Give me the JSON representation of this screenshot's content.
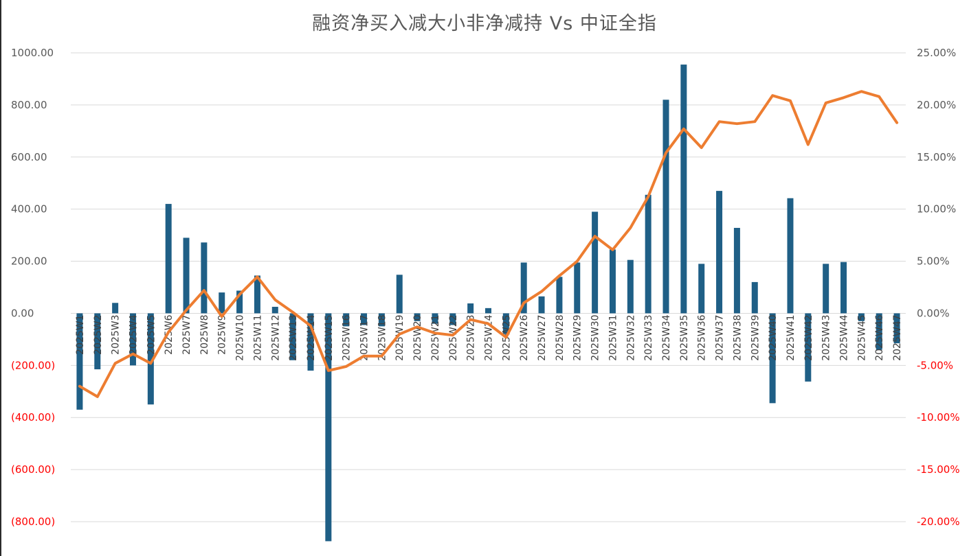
{
  "chart_data": {
    "type": "bar+line",
    "title": "融资净买入减大小非净减持 Vs 中证全指",
    "categories": [
      "2025W1",
      "2025W2",
      "2025W3",
      "2025W4",
      "2025W5",
      "2025W6",
      "2025W7",
      "2025W8",
      "2025W9",
      "2025W10",
      "2025W11",
      "2025W12",
      "2025W13",
      "2025W14",
      "2025W15",
      "2025W16",
      "2025W17",
      "2025W18",
      "2025W19",
      "2025W20",
      "2025W21",
      "2025W22",
      "2025W23",
      "2025W24",
      "2025W25",
      "2025W26",
      "2025W27",
      "2025W28",
      "2025W29",
      "2025W30",
      "2025W31",
      "2025W32",
      "2025W33",
      "2025W34",
      "2025W35",
      "2025W36",
      "2025W37",
      "2025W38",
      "2025W39",
      "2025W40",
      "2025W41",
      "2025W42",
      "2025W43",
      "2025W44",
      "2025W45",
      "2025W46",
      "2025W47"
    ],
    "series": [
      {
        "type": "bar",
        "axis": "left",
        "color": "#1f5f86",
        "values": [
          -370,
          -215,
          40,
          -200,
          -350,
          420,
          290,
          272,
          80,
          87,
          145,
          25,
          -180,
          -220,
          -875,
          -50,
          -45,
          -50,
          148,
          -30,
          -40,
          -45,
          38,
          20,
          -80,
          195,
          65,
          140,
          195,
          390,
          245,
          205,
          455,
          820,
          955,
          190,
          470,
          328,
          120,
          -345,
          442,
          -262,
          190,
          197,
          -30,
          -140,
          -115
        ]
      },
      {
        "type": "line",
        "axis": "right",
        "color": "#ed7d31",
        "values": [
          -7.0,
          -8.0,
          -4.8,
          -3.9,
          -4.8,
          -1.8,
          0.3,
          2.2,
          -0.3,
          1.8,
          3.5,
          1.3,
          0.1,
          -1.2,
          -5.5,
          -5.1,
          -4.1,
          -4.1,
          -2.0,
          -1.3,
          -1.9,
          -2.1,
          -0.6,
          -1.0,
          -2.3,
          1.0,
          2.1,
          3.6,
          5.0,
          7.4,
          6.1,
          8.2,
          11.2,
          15.4,
          17.7,
          15.9,
          18.4,
          18.2,
          18.4,
          20.9,
          20.4,
          16.2,
          20.2,
          20.7,
          21.3,
          20.8,
          18.3
        ]
      }
    ],
    "left_axis": {
      "min": -800,
      "max": 1000,
      "step": 200,
      "tick_labels": [
        "(800.00)",
        "(600.00)",
        "(400.00)",
        "(200.00)",
        "0.00",
        "200.00",
        "400.00",
        "600.00",
        "800.00",
        "1000.00"
      ]
    },
    "right_axis": {
      "min": -20,
      "max": 25,
      "step": 5,
      "tick_labels": [
        "-20.00%",
        "-15.00%",
        "-10.00%",
        "-5.00%",
        "0.00%",
        "5.00%",
        "10.00%",
        "15.00%",
        "20.00%",
        "25.00%"
      ]
    },
    "colors": {
      "negative_tick": "#ff0000",
      "positive_tick": "#595959",
      "grid": "#d9d9d9"
    },
    "grid": "horizontal",
    "legend": "none"
  }
}
